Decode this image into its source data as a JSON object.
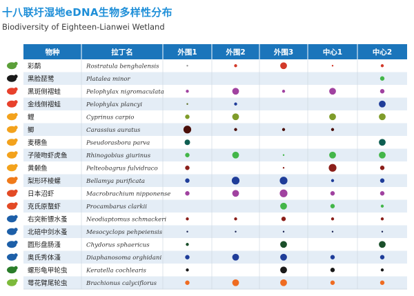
{
  "title": "十八联圩湿地eDNA生物多样性分布",
  "subtitle": "Biodiversity of Eighteen-Lianwei Wetland",
  "colors": {
    "header": "#1b75bb",
    "row_alt": "#e4edf6",
    "title": "#1f8fd8",
    "icons": [
      "#5b9f39",
      "#1a1a1a",
      "#e8412c",
      "#e8412c",
      "#f3a21c",
      "#f3a21c",
      "#f3a21c",
      "#f3a21c",
      "#f3a21c",
      "#f07a1a",
      "#e34a25",
      "#e34a25",
      "#1d5fa8",
      "#1d5fa8",
      "#1d5fa8",
      "#1d5fa8",
      "#2a7d2a",
      "#7dba3b"
    ]
  },
  "chart_data": {
    "type": "table",
    "columns": [
      "物种",
      "拉丁名",
      "外围1",
      "外围2",
      "外围3",
      "中心1",
      "中心2"
    ],
    "rows": [
      {
        "name": "彩鹬",
        "latin": "Rostratula benghalensis",
        "icon": "bird-icon",
        "dots": [
          {
            "size": 1,
            "color": "#999999"
          },
          {
            "size": 2,
            "color": "#d23a2a"
          },
          {
            "size": 5,
            "color": "#d23a2a"
          },
          {
            "size": 1,
            "color": "#d23a2a"
          },
          {
            "size": 2,
            "color": "#d23a2a"
          }
        ]
      },
      {
        "name": "黑脸琵鹭",
        "latin": "Platalea minor",
        "icon": "spoonbill-icon",
        "dots": [
          null,
          null,
          null,
          null,
          {
            "size": 3,
            "color": "#43b649"
          }
        ]
      },
      {
        "name": "黑斑侧褶蛙",
        "latin": "Pelophylax nigromaculata",
        "icon": "frog-icon",
        "dots": [
          {
            "size": 2,
            "color": "#a042a0"
          },
          {
            "size": 5,
            "color": "#a042a0"
          },
          {
            "size": 2,
            "color": "#a042a0"
          },
          {
            "size": 5,
            "color": "#a042a0"
          },
          {
            "size": 3,
            "color": "#a042a0"
          }
        ]
      },
      {
        "name": "金线侧褶蛙",
        "latin": "Pelophylax plancyi",
        "icon": "frog-icon",
        "dots": [
          {
            "size": 1,
            "color": "#5b6e24"
          },
          {
            "size": 2,
            "color": "#1f3d99"
          },
          null,
          null,
          {
            "size": 5,
            "color": "#1f3d99"
          }
        ]
      },
      {
        "name": "鲤",
        "latin": "Cyprinus carpio",
        "icon": "carp-icon",
        "dots": [
          {
            "size": 3,
            "color": "#7f9c2a"
          },
          {
            "size": 5,
            "color": "#7f9c2a"
          },
          null,
          {
            "size": 5,
            "color": "#7f9c2a"
          },
          {
            "size": 5,
            "color": "#7f9c2a"
          }
        ]
      },
      {
        "name": "鲫",
        "latin": "Carassius auratus",
        "icon": "crucian-icon",
        "dots": [
          {
            "size": 6,
            "color": "#4a0f0a"
          },
          {
            "size": 2,
            "color": "#4a0f0a"
          },
          {
            "size": 2,
            "color": "#4a0f0a"
          },
          {
            "size": 2,
            "color": "#4a0f0a"
          },
          null
        ]
      },
      {
        "name": "麦穗鱼",
        "latin": "Pseudorasbora parva",
        "icon": "minnow-icon",
        "dots": [
          {
            "size": 4,
            "color": "#0e5e52"
          },
          null,
          null,
          null,
          {
            "size": 5,
            "color": "#0e5e52"
          }
        ]
      },
      {
        "name": "子陵吻虾虎鱼",
        "latin": "Rhinogobius giurinus",
        "icon": "goby-icon",
        "dots": [
          {
            "size": 3,
            "color": "#43b649"
          },
          {
            "size": 5,
            "color": "#43b649"
          },
          {
            "size": 1,
            "color": "#43b649"
          },
          {
            "size": 5,
            "color": "#43b649"
          },
          {
            "size": 5,
            "color": "#43b649"
          }
        ]
      },
      {
        "name": "黄颡鱼",
        "latin": "Pelteobagrus fulvidraco",
        "icon": "catfish-icon",
        "dots": [
          {
            "size": 3,
            "color": "#8b1f1a"
          },
          null,
          {
            "size": 1,
            "color": "#8b1f1a"
          },
          {
            "size": 6,
            "color": "#8b1f1a"
          },
          {
            "size": 3,
            "color": "#8b1f1a"
          }
        ]
      },
      {
        "name": "梨形环棱螺",
        "latin": "Bellamya purificata",
        "icon": "snail-icon",
        "dots": [
          {
            "size": 3,
            "color": "#1f3d99"
          },
          {
            "size": 6,
            "color": "#1f3d99"
          },
          {
            "size": 6,
            "color": "#1f3d99"
          },
          {
            "size": 2,
            "color": "#1f3d99"
          },
          {
            "size": 3,
            "color": "#1f3d99"
          }
        ]
      },
      {
        "name": "日本沼虾",
        "latin": "Macrobrachium nipponense",
        "icon": "shrimp-icon",
        "dots": [
          {
            "size": 3,
            "color": "#a042a0"
          },
          {
            "size": 5,
            "color": "#a042a0"
          },
          {
            "size": 6,
            "color": "#a042a0"
          },
          {
            "size": 3,
            "color": "#a042a0"
          },
          {
            "size": 3,
            "color": "#a042a0"
          }
        ]
      },
      {
        "name": "克氏原螯虾",
        "latin": "Procambarus clarkii",
        "icon": "crayfish-icon",
        "dots": [
          null,
          null,
          {
            "size": 5,
            "color": "#43b649"
          },
          {
            "size": 3,
            "color": "#43b649"
          },
          {
            "size": 2,
            "color": "#43b649"
          }
        ]
      },
      {
        "name": "右突新镖水蚤",
        "latin": "Neodiaptomus schmackeri",
        "icon": "copepod-icon",
        "dots": [
          {
            "size": 2,
            "color": "#8b1f1a"
          },
          {
            "size": 2,
            "color": "#8b1f1a"
          },
          {
            "size": 3,
            "color": "#8b1f1a"
          },
          {
            "size": 2,
            "color": "#8b1f1a"
          },
          {
            "size": 2,
            "color": "#8b1f1a"
          }
        ]
      },
      {
        "name": "北碚中剑水蚤",
        "latin": "Mesocyclops pehpeiensis",
        "icon": "cyclops-icon",
        "dots": [
          {
            "size": 1,
            "color": "#16204f"
          },
          {
            "size": 1,
            "color": "#16204f"
          },
          {
            "size": 1,
            "color": "#16204f"
          },
          {
            "size": 1,
            "color": "#16204f"
          },
          {
            "size": 1,
            "color": "#16204f"
          }
        ]
      },
      {
        "name": "圆形盘肠溞",
        "latin": "Chydorus sphaericus",
        "icon": "water-flea-icon",
        "dots": [
          {
            "size": 2,
            "color": "#1a4f2a"
          },
          null,
          {
            "size": 5,
            "color": "#1a4f2a"
          },
          null,
          {
            "size": 5,
            "color": "#1a4f2a"
          }
        ]
      },
      {
        "name": "奥氏秀体溞",
        "latin": "Diaphanosoma orghidani",
        "icon": "daphnia-icon",
        "dots": [
          {
            "size": 3,
            "color": "#1f3d99"
          },
          {
            "size": 5,
            "color": "#1f3d99"
          },
          {
            "size": 5,
            "color": "#1f3d99"
          },
          {
            "size": 3,
            "color": "#1f3d99"
          },
          {
            "size": 3,
            "color": "#1f3d99"
          }
        ]
      },
      {
        "name": "螺形龟甲轮虫",
        "latin": "Keratella cochlearis",
        "icon": "rotifer-icon",
        "dots": [
          {
            "size": 2,
            "color": "#1a1a1a"
          },
          null,
          {
            "size": 5,
            "color": "#1a1a1a"
          },
          {
            "size": 3,
            "color": "#1a1a1a"
          },
          {
            "size": 2,
            "color": "#1a1a1a"
          }
        ]
      },
      {
        "name": "萼花臂尾轮虫",
        "latin": "Brachionus calyciflorus",
        "icon": "brachionus-icon",
        "dots": [
          {
            "size": 3,
            "color": "#ef6c22"
          },
          {
            "size": 5,
            "color": "#ef6c22"
          },
          {
            "size": 5,
            "color": "#ef6c22"
          },
          {
            "size": 3,
            "color": "#ef6c22"
          },
          {
            "size": 3,
            "color": "#ef6c22"
          }
        ]
      }
    ]
  }
}
